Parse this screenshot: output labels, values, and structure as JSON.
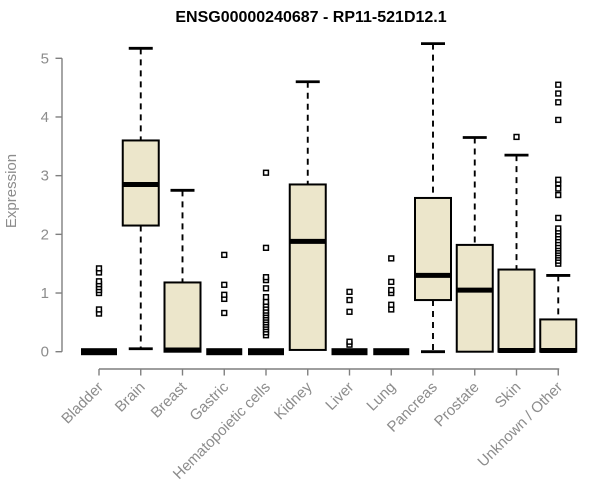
{
  "title": "ENSG00000240687 - RP11-521D12.1",
  "chart_data": {
    "type": "boxplot",
    "title": "ENSG00000240687 - RP11-521D12.1",
    "xlabel": "",
    "ylabel": "Expression",
    "ylim": [
      0,
      5
    ],
    "yticks": [
      0,
      1,
      2,
      3,
      4,
      5
    ],
    "grid": false,
    "legend": false,
    "categories": [
      "Bladder",
      "Brain",
      "Breast",
      "Gastric",
      "Hematopoietic cells",
      "Kidney",
      "Liver",
      "Lung",
      "Pancreas",
      "Prostate",
      "Skin",
      "Unknown / Other"
    ],
    "series": [
      {
        "name": "Bladder",
        "whislo": 0,
        "q1": 0,
        "med": 0,
        "q3": 0,
        "whishi": 0,
        "outliers": [
          0.65,
          0.72,
          1.0,
          1.05,
          1.1,
          1.15,
          1.2,
          1.35,
          1.42
        ]
      },
      {
        "name": "Brain",
        "whislo": 0.05,
        "q1": 2.15,
        "med": 2.85,
        "q3": 3.6,
        "whishi": 5.17,
        "outliers": []
      },
      {
        "name": "Breast",
        "whislo": 0,
        "q1": 0,
        "med": 0.03,
        "q3": 1.18,
        "whishi": 2.75,
        "outliers": []
      },
      {
        "name": "Gastric",
        "whislo": 0,
        "q1": 0,
        "med": 0,
        "q3": 0,
        "whishi": 0,
        "outliers": [
          0.66,
          0.9,
          0.97,
          1.14,
          1.65
        ]
      },
      {
        "name": "Hematopoietic cells",
        "whislo": 0,
        "q1": 0,
        "med": 0,
        "q3": 0,
        "whishi": 0,
        "outliers": [
          0.28,
          0.33,
          0.38,
          0.42,
          0.46,
          0.5,
          0.54,
          0.58,
          0.62,
          0.66,
          0.7,
          0.75,
          0.8,
          0.85,
          0.93,
          1.08,
          1.22,
          1.27,
          1.77,
          3.05
        ]
      },
      {
        "name": "Kidney",
        "whislo": 0.03,
        "q1": 0.03,
        "med": 1.88,
        "q3": 2.85,
        "whishi": 4.6,
        "outliers": []
      },
      {
        "name": "Liver",
        "whislo": 0,
        "q1": 0,
        "med": 0,
        "q3": 0,
        "whishi": 0,
        "outliers": [
          0.12,
          0.17,
          0.68,
          0.88,
          1.02
        ]
      },
      {
        "name": "Lung",
        "whislo": 0,
        "q1": 0,
        "med": 0,
        "q3": 0,
        "whishi": 0,
        "outliers": [
          0.72,
          0.8,
          1.0,
          1.05,
          1.19,
          1.59
        ]
      },
      {
        "name": "Pancreas",
        "whislo": 0,
        "q1": 0.88,
        "med": 1.3,
        "q3": 2.62,
        "whishi": 5.25,
        "outliers": []
      },
      {
        "name": "Prostate",
        "whislo": 0,
        "q1": 0,
        "med": 1.05,
        "q3": 1.82,
        "whishi": 3.65,
        "outliers": []
      },
      {
        "name": "Skin",
        "whislo": 0,
        "q1": 0,
        "med": 0.02,
        "q3": 1.4,
        "whishi": 3.35,
        "outliers": [
          3.66
        ]
      },
      {
        "name": "Unknown / Other",
        "whislo": 0,
        "q1": 0,
        "med": 0.02,
        "q3": 0.55,
        "whishi": 1.3,
        "outliers": [
          1.5,
          1.55,
          1.6,
          1.64,
          1.68,
          1.72,
          1.76,
          1.8,
          1.85,
          1.9,
          1.95,
          2.0,
          2.05,
          2.1,
          2.28,
          2.67,
          2.78,
          2.87,
          2.93,
          3.95,
          4.25,
          4.4,
          4.55
        ]
      }
    ],
    "colors": {
      "box_fill": "#ece6cb",
      "box_stroke": "#000000",
      "median": "#000000",
      "whisker": "#000000",
      "outlier_stroke": "#000000",
      "outlier_fill": "#ffffff",
      "axis_line": "#7f7f7f",
      "tick_label": "#8c8c8c",
      "title": "#000000"
    }
  }
}
